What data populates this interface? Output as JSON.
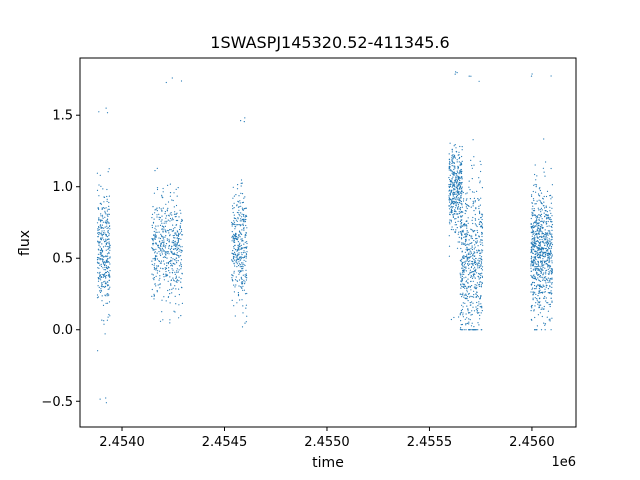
{
  "chart_data": {
    "type": "scatter",
    "title": "1SWASPJ145320.52-411345.6",
    "xlabel": "time",
    "ylabel": "flux",
    "x_offset_label": "1e6",
    "xlim": [
      2453795,
      2456215
    ],
    "ylim": [
      -0.68,
      1.9
    ],
    "x_ticks": [
      2.454,
      2.4545,
      2.455,
      2.4555,
      2.456
    ],
    "x_tick_labels": [
      "2.4540",
      "2.4545",
      "2.4550",
      "2.4555",
      "2.4560"
    ],
    "y_ticks": [
      -0.5,
      0.0,
      0.5,
      1.0,
      1.5
    ],
    "y_tick_labels": [
      "−0.5",
      "0.0",
      "0.5",
      "1.0",
      "1.5"
    ],
    "color": "#1f77b4",
    "grid": false,
    "series": [
      {
        "segments": [
          {
            "x0": 2453880,
            "x1": 2453942,
            "center": 0.55,
            "spread": 0.2,
            "min": -0.57,
            "max": 1.57,
            "count": 350
          },
          {
            "x0": 2454145,
            "x1": 2454295,
            "center": 0.56,
            "spread": 0.18,
            "min": 0.02,
            "max": 1.77,
            "count": 500
          },
          {
            "x0": 2454535,
            "x1": 2454610,
            "center": 0.57,
            "spread": 0.2,
            "min": 0.02,
            "max": 1.49,
            "count": 350
          },
          {
            "x0": 2455595,
            "x1": 2455660,
            "center": 0.98,
            "spread": 0.14,
            "min": 0.02,
            "max": 1.83,
            "count": 400
          },
          {
            "x0": 2455650,
            "x1": 2455760,
            "center": 0.45,
            "spread": 0.28,
            "min": 0.0,
            "max": 1.78,
            "count": 600
          },
          {
            "x0": 2455995,
            "x1": 2456100,
            "center": 0.55,
            "spread": 0.22,
            "min": 0.0,
            "max": 1.8,
            "count": 800
          }
        ]
      }
    ]
  }
}
